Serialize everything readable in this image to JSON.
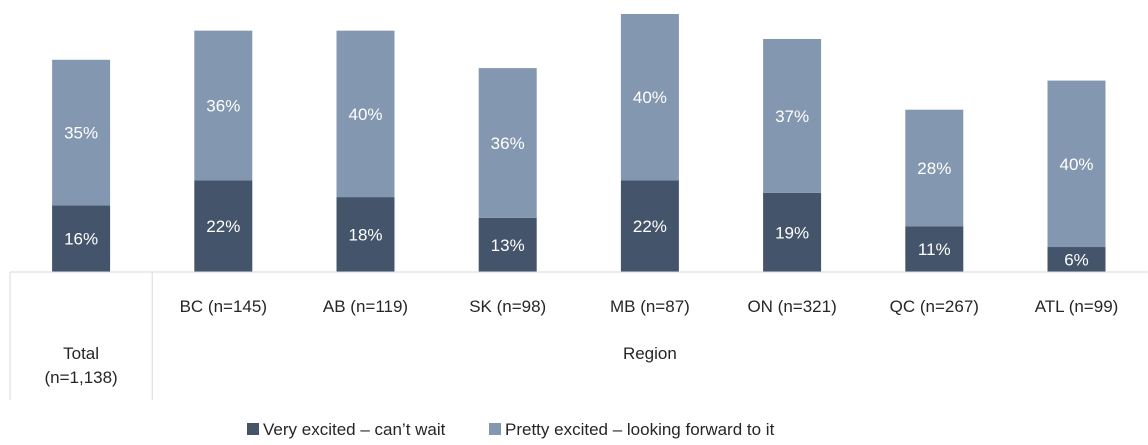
{
  "chart_data": {
    "type": "bar",
    "stacked": true,
    "categories": [
      "Total\n(n=1,138)",
      "BC (n=145)",
      "AB (n=119)",
      "SK (n=98)",
      "MB (n=87)",
      "ON (n=321)",
      "QC (n=267)",
      "ATL (n=99)"
    ],
    "group_label": "Region",
    "series": [
      {
        "name": "Very excited – can’t wait",
        "values": [
          16,
          22,
          18,
          13,
          22,
          19,
          11,
          6
        ],
        "labels": [
          "16%",
          "22%",
          "18%",
          "13%",
          "22%",
          "19%",
          "11%",
          "6%"
        ]
      },
      {
        "name": "Pretty excited – looking forward to it",
        "values": [
          35,
          36,
          40,
          36,
          40,
          37,
          28,
          40
        ],
        "labels": [
          "35%",
          "36%",
          "40%",
          "36%",
          "40%",
          "37%",
          "28%",
          "40%"
        ]
      }
    ],
    "ylim": [
      0,
      62
    ],
    "grid": false,
    "legend_position": "bottom",
    "colors": [
      "#44546a",
      "#8497b0"
    ],
    "label_colors": [
      "#ffffff",
      "#ffffff"
    ]
  }
}
